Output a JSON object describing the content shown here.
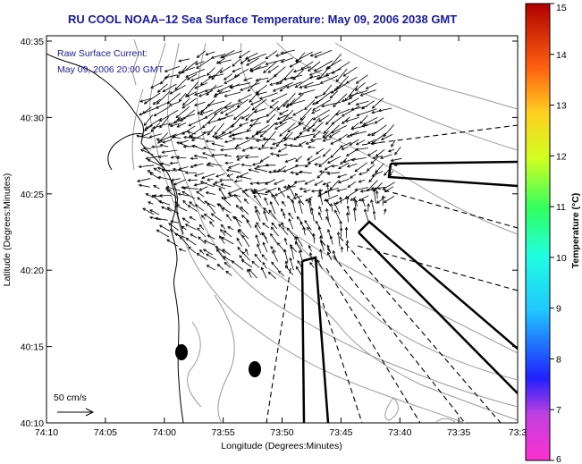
{
  "title": "RU COOL  NOAA–12  Sea Surface Temperature:  May 09, 2006 2038 GMT",
  "overlay_line1": "Raw Surface Current:",
  "overlay_line2": "May 09, 2006 20:00 GMT",
  "scale_label": "50 cm/s",
  "xlabel": "Longitude (Degrees:Minutes)",
  "ylabel": "Latitude (Degrees:Minutes)",
  "x_ticks": [
    "74:10",
    "74:05",
    "74:00",
    "73:55",
    "73:50",
    "73:45",
    "73:40",
    "73:35",
    "73:3"
  ],
  "y_ticks": [
    "40:35",
    "40:30",
    "40:25",
    "40:20",
    "40:15",
    "40:10"
  ],
  "colorbar": {
    "label": "Temperature (°C)",
    "ticks": [
      "15",
      "14",
      "13",
      "12",
      "11",
      "10",
      "9",
      "8",
      "7",
      "6"
    ]
  },
  "colors": {
    "title": "#1a1aa8",
    "map_fg": "#000000",
    "contour": "#9a9a9a"
  }
}
